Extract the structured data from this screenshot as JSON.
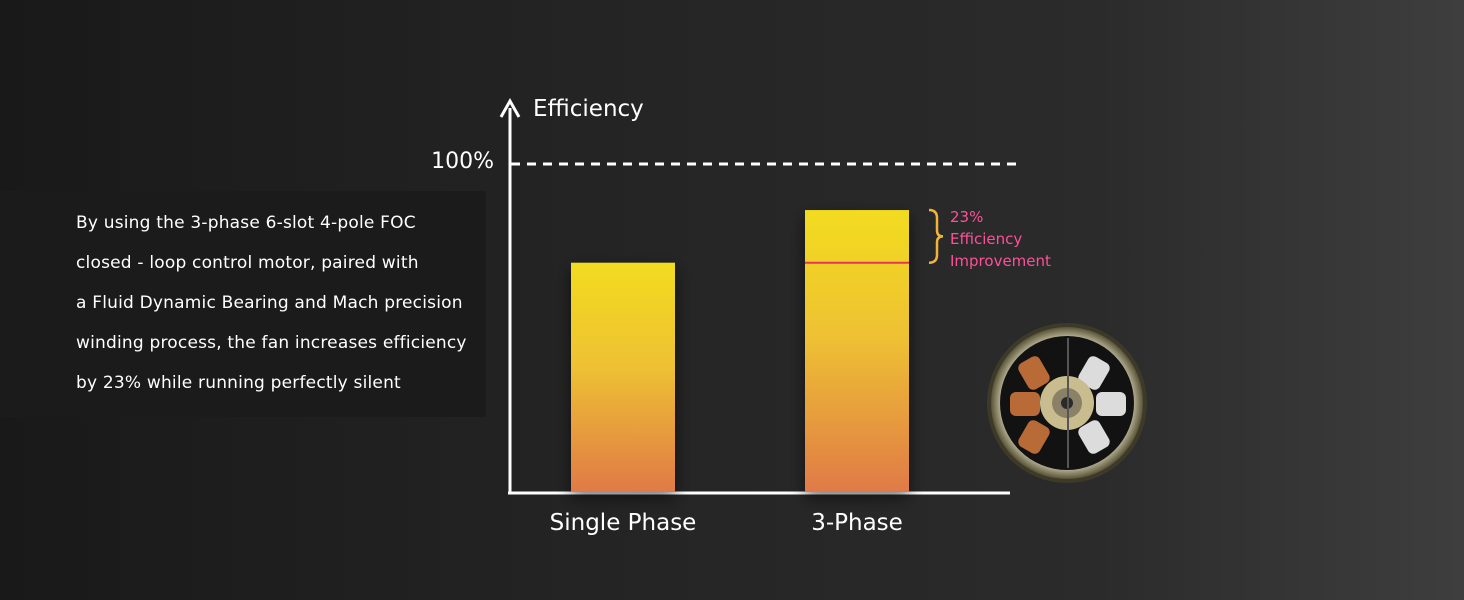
{
  "description": {
    "lines": [
      "By using the 3-phase 6-slot 4-pole FOC",
      "closed - loop control motor, paired with",
      "a Fluid Dynamic Bearing and Mach precision",
      "winding process, the  fan increases efficiency",
      "by 23% while running perfectly silent"
    ]
  },
  "chart_data": {
    "type": "bar",
    "ylabel": "Efficiency",
    "reference_line": {
      "label": "100%",
      "value": 100,
      "style": "dashed"
    },
    "categories": [
      "Single Phase",
      "3-Phase"
    ],
    "values": [
      70,
      86
    ],
    "ylim": [
      0,
      100
    ],
    "annotation": {
      "lines": [
        "23%",
        "Efficiency",
        "Improvement"
      ],
      "color": "#ff4f9a"
    },
    "bar_gradient": [
      "#f2dc1f",
      "#e07a47"
    ],
    "grid": false,
    "legend": "none"
  },
  "colors": {
    "background": "#222222",
    "text": "#ffffff",
    "accent": "#ff4f9a",
    "bar_top": "#f2dc1f",
    "bar_bottom": "#e07a47"
  },
  "motor_image": {
    "icon": "motor-stator-icon"
  }
}
